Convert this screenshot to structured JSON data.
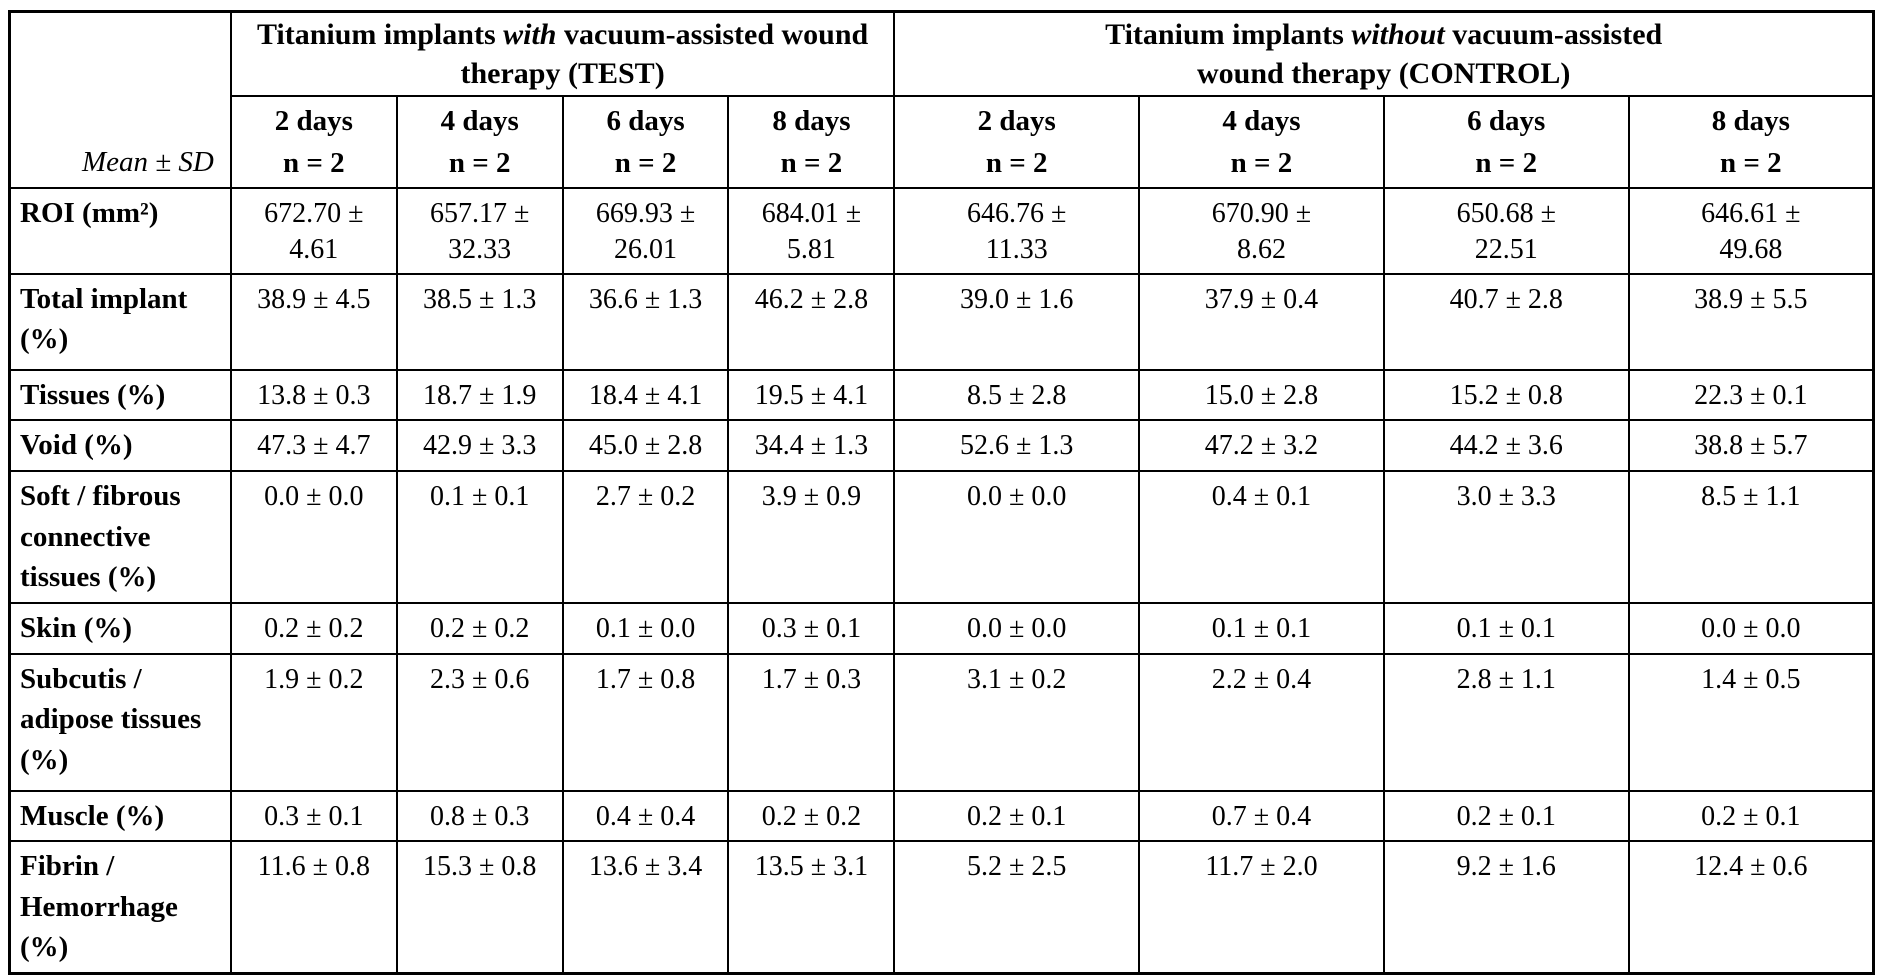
{
  "table": {
    "corner_label": "Mean ± SD",
    "groups": [
      {
        "title_prefix": "Titanium implants ",
        "title_italic": "with",
        "title_suffix": " vacuum-assisted wound\ntherapy (TEST)"
      },
      {
        "title_prefix": "Titanium implants ",
        "title_italic": "without",
        "title_suffix": " vacuum-assisted\nwound therapy (CONTROL)"
      }
    ],
    "col_headers": [
      "2 days\nn = 2",
      "4 days\nn = 2",
      "6 days\nn = 2",
      "8 days\nn = 2",
      "2 days\nn = 2",
      "4 days\nn = 2",
      "6 days\nn = 2",
      "8 days\nn = 2"
    ],
    "rows": [
      {
        "label": "ROI (mm²)",
        "values": [
          "672.70 ±\n4.61",
          "657.17 ±\n32.33",
          "669.93 ±\n26.01",
          "684.01 ±\n5.81",
          "646.76 ±\n11.33",
          "670.90 ±\n8.62",
          "650.68 ±\n22.51",
          "646.61 ±\n49.68"
        ]
      },
      {
        "label": "Total implant (%)",
        "values": [
          "38.9 ± 4.5",
          "38.5 ± 1.3",
          "36.6 ± 1.3",
          "46.2 ± 2.8",
          "39.0 ± 1.6",
          "37.9 ± 0.4",
          "40.7 ± 2.8",
          "38.9 ± 5.5"
        ]
      },
      {
        "label": "Tissues (%)",
        "values": [
          "13.8 ± 0.3",
          "18.7 ± 1.9",
          "18.4 ± 4.1",
          "19.5 ± 4.1",
          "8.5 ± 2.8",
          "15.0 ± 2.8",
          "15.2 ± 0.8",
          "22.3 ± 0.1"
        ]
      },
      {
        "label": "Void (%)",
        "values": [
          "47.3 ± 4.7",
          "42.9 ± 3.3",
          "45.0 ± 2.8",
          "34.4 ± 1.3",
          "52.6 ± 1.3",
          "47.2 ± 3.2",
          "44.2 ± 3.6",
          "38.8 ± 5.7"
        ]
      },
      {
        "label": "Soft / fibrous connective tissues (%)",
        "values": [
          "0.0 ± 0.0",
          "0.1 ± 0.1",
          "2.7 ± 0.2",
          "3.9 ± 0.9",
          "0.0 ± 0.0",
          "0.4 ± 0.1",
          "3.0 ± 3.3",
          "8.5 ± 1.1"
        ]
      },
      {
        "label": "Skin (%)",
        "values": [
          "0.2 ± 0.2",
          "0.2 ± 0.2",
          "0.1 ± 0.0",
          "0.3 ± 0.1",
          "0.0 ± 0.0",
          "0.1 ± 0.1",
          "0.1 ± 0.1",
          "0.0 ± 0.0"
        ]
      },
      {
        "label": "Subcutis / adipose tissues (%)",
        "values": [
          "1.9 ± 0.2",
          "2.3 ± 0.6",
          "1.7 ± 0.8",
          "1.7 ± 0.3",
          "3.1 ± 0.2",
          "2.2 ± 0.4",
          "2.8 ± 1.1",
          "1.4 ± 0.5"
        ]
      },
      {
        "label": "Muscle (%)",
        "values": [
          "0.3 ± 0.1",
          "0.8 ± 0.3",
          "0.4 ± 0.4",
          "0.2 ± 0.2",
          "0.2 ± 0.1",
          "0.7 ± 0.4",
          "0.2 ± 0.1",
          "0.2 ± 0.1"
        ]
      },
      {
        "label": "Fibrin / Hemorrhage (%)",
        "values": [
          "11.6 ± 0.8",
          "15.3 ± 0.8",
          "13.6 ± 3.4",
          "13.5 ± 3.1",
          "5.2 ± 2.5",
          "11.7 ± 2.0",
          "9.2 ± 1.6",
          "12.4 ± 0.6"
        ]
      }
    ]
  }
}
